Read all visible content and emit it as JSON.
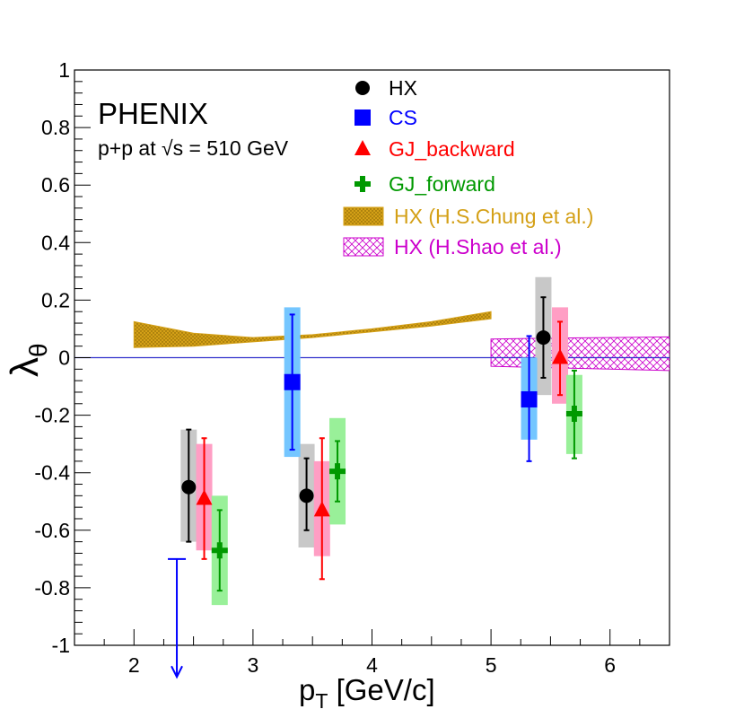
{
  "chart_data": {
    "type": "scatter",
    "title": "",
    "experiment_label": "PHENIX",
    "subtitle": "p+p at √s = 510 GeV",
    "xlabel": "p_T [GeV/c]",
    "xlabel_main": "p",
    "xlabel_sub": "T",
    "xlabel_unit": " [GeV/c]",
    "ylabel": "λ_θ",
    "ylabel_main": "λ",
    "ylabel_sub": "θ",
    "xlim": [
      1.5,
      6.5
    ],
    "ylim": [
      -1,
      1
    ],
    "x_ticks": [
      2,
      3,
      4,
      5,
      6
    ],
    "x_tick_labels": [
      "2",
      "3",
      "4",
      "5",
      "6"
    ],
    "y_ticks": [
      -1,
      -0.8,
      -0.6,
      -0.4,
      -0.2,
      0,
      0.2,
      0.4,
      0.6,
      0.8,
      1
    ],
    "y_tick_labels": [
      "-1",
      "-0.8",
      "-0.6",
      "-0.4",
      "-0.2",
      "0",
      "0.2",
      "0.4",
      "0.6",
      "0.8",
      "1"
    ],
    "grid": false,
    "legend_position": "top-right",
    "reference_line": {
      "y": 0,
      "color": "#3333cc"
    },
    "series": [
      {
        "name": "HX",
        "marker": "circle",
        "color": "#000000",
        "sys_color": "#c8c8c8",
        "points": [
          {
            "x": 2.46,
            "y": -0.45,
            "stat_lo": -0.64,
            "stat_hi": -0.25,
            "sys_lo": -0.64,
            "sys_hi": -0.25
          },
          {
            "x": 3.45,
            "y": -0.48,
            "stat_lo": -0.6,
            "stat_hi": -0.35,
            "sys_lo": -0.66,
            "sys_hi": -0.3
          },
          {
            "x": 5.44,
            "y": 0.07,
            "stat_lo": -0.07,
            "stat_hi": 0.21,
            "sys_lo": -0.13,
            "sys_hi": 0.28
          }
        ]
      },
      {
        "name": "CS",
        "marker": "square",
        "color": "#0000ff",
        "sys_color": "#74c6ff",
        "points": [
          {
            "x": 3.33,
            "y": -0.085,
            "stat_lo": -0.32,
            "stat_hi": 0.15,
            "sys_lo": -0.345,
            "sys_hi": 0.175
          },
          {
            "x": 5.32,
            "y": -0.145,
            "stat_lo": -0.36,
            "stat_hi": 0.075,
            "sys_lo": -0.285,
            "sys_hi": 0.0
          }
        ]
      },
      {
        "name": "GJ_backward",
        "marker": "triangle",
        "color": "#ff0000",
        "sys_color": "#ff9ec4",
        "points": [
          {
            "x": 2.59,
            "y": -0.49,
            "stat_lo": -0.7,
            "stat_hi": -0.28,
            "sys_lo": -0.67,
            "sys_hi": -0.3
          },
          {
            "x": 3.58,
            "y": -0.53,
            "stat_lo": -0.77,
            "stat_hi": -0.28,
            "sys_lo": -0.69,
            "sys_hi": -0.36
          },
          {
            "x": 5.58,
            "y": 0.0,
            "stat_lo": -0.13,
            "stat_hi": 0.125,
            "sys_lo": -0.16,
            "sys_hi": 0.175
          }
        ]
      },
      {
        "name": "GJ_forward",
        "marker": "cross",
        "color": "#009900",
        "sys_color": "#99f099",
        "points": [
          {
            "x": 2.72,
            "y": -0.67,
            "stat_lo": -0.81,
            "stat_hi": -0.53,
            "sys_lo": -0.86,
            "sys_hi": -0.48
          },
          {
            "x": 3.71,
            "y": -0.395,
            "stat_lo": -0.5,
            "stat_hi": -0.29,
            "sys_lo": -0.58,
            "sys_hi": -0.21
          },
          {
            "x": 5.7,
            "y": -0.195,
            "stat_lo": -0.35,
            "stat_hi": -0.045,
            "sys_lo": -0.335,
            "sys_hi": -0.06
          }
        ]
      }
    ],
    "upper_limit": {
      "series": "CS",
      "x": 2.36,
      "y_from": -0.7,
      "y_to": -1.11,
      "color": "#0000ff"
    },
    "theory_bands": [
      {
        "name": "HX (H.S.Chung et al.)",
        "color": "#d4a017",
        "pattern": "dotted-fill",
        "x": [
          2.0,
          2.5,
          3.0,
          3.5,
          4.0,
          4.5,
          5.0
        ],
        "lower": [
          0.035,
          0.04,
          0.055,
          0.07,
          0.09,
          0.11,
          0.135
        ],
        "upper": [
          0.125,
          0.085,
          0.07,
          0.08,
          0.1,
          0.125,
          0.16
        ]
      },
      {
        "name": "HX (H.Shao et al.)",
        "color": "#cc00cc",
        "pattern": "crosshatch",
        "x": [
          5.0,
          5.5,
          6.0,
          6.5
        ],
        "lower": [
          -0.03,
          -0.035,
          -0.04,
          -0.045
        ],
        "upper": [
          0.065,
          0.068,
          0.07,
          0.072
        ]
      }
    ]
  }
}
